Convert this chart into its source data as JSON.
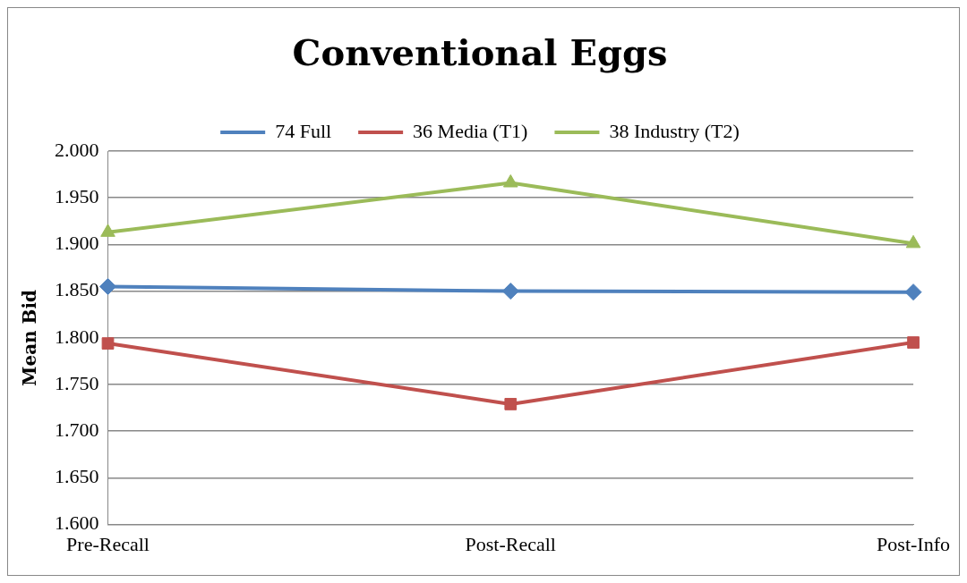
{
  "chart_data": {
    "type": "line",
    "title": "Conventional Eggs",
    "ylabel": "Mean Bid",
    "categories": [
      "Pre-Recall",
      "Post-Recall",
      "Post-Info"
    ],
    "series": [
      {
        "name": "74 Full",
        "color": "#4f81bd",
        "values": [
          1.855,
          1.85,
          1.849
        ],
        "marker": "diamond"
      },
      {
        "name": "36 Media (T1)",
        "color": "#c0504d",
        "values": [
          1.794,
          1.729,
          1.795
        ],
        "marker": "square"
      },
      {
        "name": "38 Industry (T2)",
        "color": "#9bbb59",
        "values": [
          1.913,
          1.966,
          1.901
        ],
        "marker": "triangle"
      }
    ],
    "ylim": [
      1.6,
      2.0
    ],
    "yticks": [
      {
        "value": 1.6,
        "label": "1.600"
      },
      {
        "value": 1.65,
        "label": "1.650"
      },
      {
        "value": 1.7,
        "label": "1.700"
      },
      {
        "value": 1.75,
        "label": "1.750"
      },
      {
        "value": 1.8,
        "label": "1.800"
      },
      {
        "value": 1.85,
        "label": "1.850"
      },
      {
        "value": 1.9,
        "label": "1.900"
      },
      {
        "value": 1.95,
        "label": "1.950"
      },
      {
        "value": 2.0,
        "label": "2.000"
      }
    ],
    "grid": "y",
    "legend": "top"
  }
}
